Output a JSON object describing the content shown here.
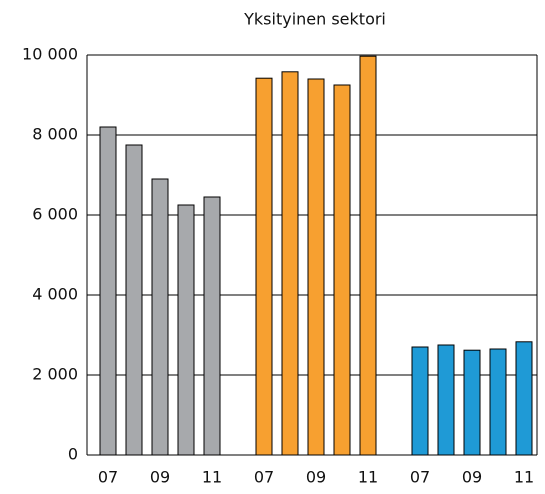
{
  "chart_data": {
    "type": "bar",
    "title": "Yksityinen sektori",
    "categories": [
      "07",
      null,
      "09",
      null,
      "11",
      "07",
      null,
      "09",
      null,
      "11",
      "07",
      null,
      "09",
      null,
      "11"
    ],
    "values": [
      8200,
      7750,
      6900,
      6250,
      6450,
      9420,
      9580,
      9400,
      9250,
      9970,
      2700,
      2750,
      2620,
      2650,
      2830
    ],
    "colors": [
      "#a7a9ac",
      "#a7a9ac",
      "#a7a9ac",
      "#a7a9ac",
      "#a7a9ac",
      "#f7a030",
      "#f7a030",
      "#f7a030",
      "#f7a030",
      "#f7a030",
      "#1f9ad6",
      "#1f9ad6",
      "#1f9ad6",
      "#1f9ad6",
      "#1f9ad6"
    ],
    "ylim": [
      0,
      10000
    ],
    "yticks": [
      0,
      {
        "value": 2000,
        "label": "2 000"
      },
      {
        "value": 4000,
        "label": "4 000"
      },
      {
        "value": 6000,
        "label": "6 000"
      },
      {
        "value": 8000,
        "label": "8 000"
      },
      {
        "value": 10000,
        "label": "10 000"
      }
    ],
    "grid": true
  }
}
